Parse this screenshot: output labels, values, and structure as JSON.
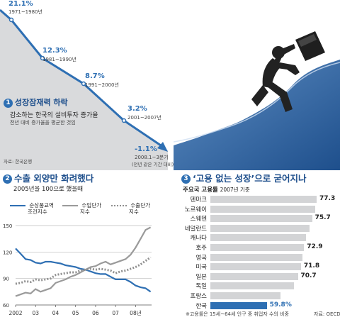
{
  "panel1": {
    "number": "1",
    "title": "성장잠재력 하락",
    "subtitle": "감소하는 한국의 설비투자 증가율",
    "note": "전년 대비 증가율을 평균한 것임",
    "source": "자료: 한국은행",
    "colors": {
      "line": "#2e6fb3",
      "fill": "#d9dadc",
      "value": "#2e6fb3"
    },
    "chart_data": {
      "type": "line",
      "points": [
        {
          "value": "21.1%",
          "period": "1971~1980년"
        },
        {
          "value": "12.3%",
          "period": "1981~1990년"
        },
        {
          "value": "8.7%",
          "period": "1991~2000년"
        },
        {
          "value": "3.2%",
          "period": "2001~2007년"
        },
        {
          "value": "-1.1%",
          "period": "2008.1~3분기",
          "period2": "(전년 같은 기간 대비)"
        }
      ]
    }
  },
  "panel2": {
    "number": "2",
    "title": "수출 외양만 화려했다",
    "subtitle": "2005년을 100으로 했을때",
    "chart_data": {
      "type": "line",
      "x_ticks": [
        "2002",
        "03",
        "04",
        "05",
        "06",
        "07",
        "08년"
      ],
      "y_ticks": [
        60,
        90,
        120,
        150
      ],
      "ylim": [
        60,
        150
      ],
      "xlim": [
        2002,
        2008.8
      ],
      "series": [
        {
          "name": "순상품교역 조건지수",
          "style": "solid",
          "color": "#2e6fb3",
          "points": [
            [
              2002.0,
              124
            ],
            [
              2002.25,
              118
            ],
            [
              2002.5,
              112
            ],
            [
              2002.75,
              111
            ],
            [
              2003.0,
              108
            ],
            [
              2003.25,
              107
            ],
            [
              2003.5,
              109
            ],
            [
              2003.75,
              109
            ],
            [
              2004.0,
              108
            ],
            [
              2004.25,
              107
            ],
            [
              2004.5,
              105
            ],
            [
              2004.75,
              104
            ],
            [
              2005.0,
              103
            ],
            [
              2005.25,
              101
            ],
            [
              2005.5,
              100
            ],
            [
              2005.75,
              98
            ],
            [
              2006.0,
              96
            ],
            [
              2006.25,
              95
            ],
            [
              2006.5,
              95
            ],
            [
              2006.75,
              92
            ],
            [
              2007.0,
              89
            ],
            [
              2007.25,
              89
            ],
            [
              2007.5,
              89
            ],
            [
              2007.75,
              86
            ],
            [
              2008.0,
              82
            ],
            [
              2008.25,
              80
            ],
            [
              2008.5,
              79
            ],
            [
              2008.75,
              75
            ]
          ]
        },
        {
          "name": "수입단가 지수",
          "style": "solid",
          "color": "#9a9a9a",
          "points": [
            [
              2002.0,
              70
            ],
            [
              2002.25,
              72
            ],
            [
              2002.5,
              74
            ],
            [
              2002.75,
              73
            ],
            [
              2003.0,
              78
            ],
            [
              2003.25,
              75
            ],
            [
              2003.5,
              77
            ],
            [
              2003.75,
              79
            ],
            [
              2004.0,
              85
            ],
            [
              2004.25,
              87
            ],
            [
              2004.5,
              89
            ],
            [
              2004.75,
              92
            ],
            [
              2005.0,
              94
            ],
            [
              2005.25,
              97
            ],
            [
              2005.5,
              100
            ],
            [
              2005.75,
              103
            ],
            [
              2006.0,
              104
            ],
            [
              2006.25,
              107
            ],
            [
              2006.5,
              109
            ],
            [
              2006.75,
              106
            ],
            [
              2007.0,
              108
            ],
            [
              2007.25,
              110
            ],
            [
              2007.5,
              112
            ],
            [
              2007.75,
              117
            ],
            [
              2008.0,
              125
            ],
            [
              2008.25,
              135
            ],
            [
              2008.5,
              145
            ],
            [
              2008.75,
              148
            ]
          ]
        },
        {
          "name": "수출단가 지수",
          "style": "dotted",
          "color": "#9a9a9a",
          "points": [
            [
              2002.0,
              84
            ],
            [
              2002.25,
              85
            ],
            [
              2002.5,
              87
            ],
            [
              2002.75,
              86
            ],
            [
              2003.0,
              89
            ],
            [
              2003.25,
              88
            ],
            [
              2003.5,
              89
            ],
            [
              2003.75,
              90
            ],
            [
              2004.0,
              94
            ],
            [
              2004.25,
              95
            ],
            [
              2004.5,
              96
            ],
            [
              2004.75,
              97
            ],
            [
              2005.0,
              97
            ],
            [
              2005.25,
              99
            ],
            [
              2005.5,
              100
            ],
            [
              2005.75,
              101
            ],
            [
              2006.0,
              100
            ],
            [
              2006.25,
              101
            ],
            [
              2006.5,
              100
            ],
            [
              2006.75,
              99
            ],
            [
              2007.0,
              96
            ],
            [
              2007.25,
              98
            ],
            [
              2007.5,
              99
            ],
            [
              2007.75,
              101
            ],
            [
              2008.0,
              103
            ],
            [
              2008.25,
              106
            ],
            [
              2008.5,
              110
            ],
            [
              2008.75,
              114
            ]
          ]
        }
      ]
    }
  },
  "panel3": {
    "number": "3",
    "title": "‘고용 없는 성장’으로 굳어지나",
    "subtitle_bold": "주요국 고용률",
    "subtitle_year": "2007년 기준",
    "footnote": "※고용률은 15세~64세 인구 중 취업자 수의 비중",
    "source": "자료: OECD",
    "colors": {
      "bar": "#d3d4d6",
      "highlight_bar": "#2e6fb3",
      "highlight_value": "#2e6fb3"
    },
    "chart_data": {
      "type": "bar",
      "orientation": "horizontal",
      "categories": [
        "덴마크",
        "노르웨이",
        "스웨덴",
        "네덜란드",
        "캐나다",
        "호주",
        "영국",
        "미국",
        "일본",
        "독일",
        "프랑스",
        "한국"
      ],
      "values": [
        77.3,
        76.8,
        75.7,
        74.8,
        73.6,
        72.9,
        72.3,
        71.8,
        70.7,
        69.4,
        64.6,
        59.8
      ],
      "labels": [
        "77.3",
        "",
        "75.7",
        "",
        "",
        "72.9",
        "",
        "71.8",
        "70.7",
        "",
        "",
        "59.8%"
      ],
      "highlight": "한국"
    }
  }
}
